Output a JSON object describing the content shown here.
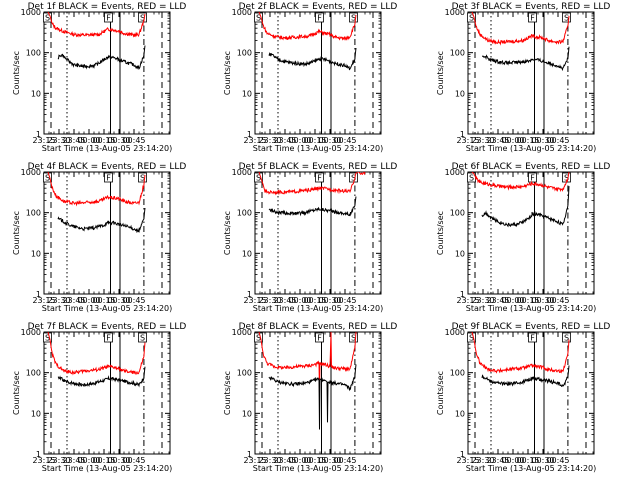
{
  "chart_data": [
    {
      "type": "line",
      "title": "Det 1f BLACK = Events, RED = LLD",
      "xlabel": "Start Time (13-Aug-05 23:14:20)",
      "ylabel": "Counts/sec",
      "x_ticks": [
        "23:15",
        "23:30",
        "23:45",
        "00:00",
        "00:15",
        "00:30",
        "00:45"
      ],
      "y_ticks": [
        "1",
        "10",
        "100",
        "1000"
      ],
      "ylim": [
        1,
        1000
      ],
      "yscale": "log",
      "markers": [
        {
          "label": "S"
        },
        {
          "label": "F"
        },
        {
          "label": "S"
        }
      ],
      "series": [
        {
          "name": "RED",
          "color": "#ff0000",
          "x": [
            4,
            6,
            8,
            12,
            20,
            30,
            40,
            55,
            64,
            70,
            75,
            80,
            90,
            95,
            99.9,
            101
          ],
          "y": [
            1000,
            800,
            520,
            400,
            330,
            280,
            270,
            280,
            380,
            360,
            340,
            300,
            270,
            280,
            600,
            900
          ]
        },
        {
          "name": "BLACK",
          "color": "#000000",
          "x": [
            14,
            18,
            22,
            30,
            40,
            50,
            55,
            60,
            64,
            64,
            70,
            80,
            90,
            95,
            99.9,
            101
          ],
          "y": [
            75,
            90,
            70,
            50,
            46,
            48,
            55,
            68,
            78,
            80,
            75,
            60,
            50,
            42,
            85,
            150
          ]
        }
      ]
    },
    {
      "type": "line",
      "title": "Det 2f BLACK = Events, RED = LLD",
      "xlabel": "Start Time (13-Aug-05 23:14:20)",
      "ylabel": "Counts/sec",
      "x_ticks": [
        "23:15",
        "23:30",
        "23:45",
        "00:00",
        "00:15",
        "00:30",
        "00:45"
      ],
      "y_ticks": [
        "1",
        "10",
        "100",
        "1000"
      ],
      "ylim": [
        1,
        1000
      ],
      "yscale": "log",
      "markers": [
        {
          "label": "S"
        },
        {
          "label": "F"
        },
        {
          "label": "S"
        }
      ],
      "series": [
        {
          "name": "RED",
          "color": "#ff0000",
          "x": [
            4,
            6,
            8,
            12,
            20,
            30,
            40,
            55,
            64,
            70,
            75,
            80,
            90,
            95,
            99.9,
            101
          ],
          "y": [
            1000,
            750,
            480,
            300,
            250,
            230,
            240,
            260,
            330,
            300,
            280,
            240,
            220,
            250,
            500,
            850
          ]
        },
        {
          "name": "BLACK",
          "color": "#000000",
          "x": [
            14,
            18,
            22,
            30,
            40,
            50,
            55,
            60,
            64,
            64,
            70,
            80,
            90,
            95,
            99.9,
            101
          ],
          "y": [
            90,
            85,
            70,
            60,
            55,
            52,
            56,
            62,
            70,
            72,
            68,
            55,
            48,
            40,
            70,
            130
          ]
        }
      ]
    },
    {
      "type": "line",
      "title": "Det 3f BLACK = Events, RED = LLD",
      "xlabel": "Start Time (13-Aug-05 23:14:20)",
      "ylabel": "Counts/sec",
      "x_ticks": [
        "23:15",
        "23:30",
        "23:45",
        "00:00",
        "00:15",
        "00:30",
        "00:45"
      ],
      "y_ticks": [
        "1",
        "10",
        "100",
        "1000"
      ],
      "ylim": [
        1,
        1000
      ],
      "yscale": "log",
      "markers": [
        {
          "label": "S"
        },
        {
          "label": "F"
        },
        {
          "label": "S"
        }
      ],
      "series": [
        {
          "name": "RED",
          "color": "#ff0000",
          "x": [
            4,
            6,
            8,
            12,
            20,
            30,
            40,
            55,
            64,
            70,
            75,
            80,
            90,
            95,
            99.9,
            101
          ],
          "y": [
            1000,
            750,
            450,
            280,
            200,
            180,
            185,
            200,
            260,
            240,
            230,
            200,
            180,
            190,
            450,
            800
          ]
        },
        {
          "name": "BLACK",
          "color": "#000000",
          "x": [
            14,
            18,
            22,
            30,
            40,
            50,
            55,
            60,
            64,
            64,
            70,
            80,
            90,
            95,
            99.9,
            101
          ],
          "y": [
            85,
            80,
            68,
            60,
            56,
            58,
            60,
            62,
            68,
            70,
            66,
            56,
            48,
            40,
            72,
            140
          ]
        }
      ]
    },
    {
      "type": "line",
      "title": "Det 4f BLACK = Events, RED = LLD",
      "xlabel": "Start Time (13-Aug-05 23:14:20)",
      "ylabel": "Counts/sec",
      "x_ticks": [
        "23:15",
        "23:30",
        "23:45",
        "00:00",
        "00:15",
        "00:30",
        "00:45"
      ],
      "y_ticks": [
        "1",
        "10",
        "100",
        "1000"
      ],
      "ylim": [
        1,
        1000
      ],
      "yscale": "log",
      "markers": [
        {
          "label": "S"
        },
        {
          "label": "F"
        },
        {
          "label": "S"
        }
      ],
      "series": [
        {
          "name": "RED",
          "color": "#ff0000",
          "x": [
            4,
            6,
            8,
            12,
            20,
            30,
            40,
            55,
            64,
            70,
            75,
            80,
            90,
            95,
            99.9,
            101
          ],
          "y": [
            1000,
            700,
            420,
            260,
            190,
            170,
            175,
            190,
            240,
            230,
            220,
            190,
            170,
            180,
            480,
            850
          ]
        },
        {
          "name": "BLACK",
          "color": "#000000",
          "x": [
            14,
            18,
            22,
            30,
            40,
            50,
            55,
            60,
            64,
            64,
            70,
            80,
            90,
            95,
            99.9,
            101
          ],
          "y": [
            70,
            65,
            55,
            45,
            40,
            42,
            46,
            50,
            56,
            58,
            56,
            48,
            40,
            35,
            70,
            130
          ]
        }
      ]
    },
    {
      "type": "line",
      "title": "Det 5f BLACK = Events, RED = LLD",
      "xlabel": "Start Time (13-Aug-05 23:14:20)",
      "ylabel": "Counts/sec",
      "x_ticks": [
        "23:15",
        "23:30",
        "23:45",
        "00:00",
        "00:15",
        "00:30",
        "00:45"
      ],
      "y_ticks": [
        "1",
        "10",
        "100",
        "1000"
      ],
      "ylim": [
        1,
        1000
      ],
      "yscale": "log",
      "markers": [
        {
          "label": "S"
        },
        {
          "label": "F"
        },
        {
          "label": "S"
        }
      ],
      "series": [
        {
          "name": "RED",
          "color": "#ff0000",
          "x": [
            4,
            6,
            8,
            10,
            14,
            20,
            30,
            40,
            55,
            64,
            70,
            80,
            90,
            95,
            99.9,
            101,
            104,
            106,
            110
          ],
          "y": [
            1000,
            700,
            500,
            330,
            320,
            320,
            320,
            330,
            360,
            400,
            390,
            360,
            340,
            330,
            700,
            1000,
            1000,
            850,
            1000
          ]
        },
        {
          "name": "BLACK",
          "color": "#000000",
          "x": [
            14,
            18,
            22,
            30,
            40,
            50,
            55,
            60,
            64,
            64,
            70,
            80,
            90,
            95,
            99.9,
            101
          ],
          "y": [
            120,
            110,
            100,
            98,
            95,
            100,
            110,
            118,
            125,
            125,
            118,
            105,
            95,
            90,
            150,
            250
          ]
        }
      ]
    },
    {
      "type": "line",
      "title": "Det 6f BLACK = Events, RED = LLD",
      "xlabel": "Start Time (13-Aug-05 23:14:20)",
      "ylabel": "Counts/sec",
      "x_ticks": [
        "23:15",
        "23:30",
        "23:45",
        "00:00",
        "00:15",
        "00:30",
        "00:45"
      ],
      "y_ticks": [
        "1",
        "10",
        "100",
        "1000"
      ],
      "ylim": [
        1,
        1000
      ],
      "yscale": "log",
      "markers": [
        {
          "label": "S"
        },
        {
          "label": "F"
        },
        {
          "label": "S"
        }
      ],
      "series": [
        {
          "name": "RED",
          "color": "#ff0000",
          "x": [
            4,
            6,
            8,
            12,
            20,
            30,
            40,
            55,
            64,
            70,
            75,
            80,
            90,
            95,
            99.9,
            101
          ],
          "y": [
            1000,
            900,
            700,
            560,
            500,
            450,
            420,
            440,
            520,
            500,
            470,
            420,
            380,
            380,
            700,
            1000
          ]
        },
        {
          "name": "BLACK",
          "color": "#000000",
          "x": [
            14,
            18,
            22,
            30,
            40,
            50,
            55,
            60,
            64,
            64,
            70,
            80,
            90,
            95,
            99.9,
            101
          ],
          "y": [
            85,
            100,
            80,
            60,
            50,
            52,
            60,
            70,
            85,
            95,
            90,
            75,
            60,
            50,
            150,
            450
          ]
        }
      ]
    },
    {
      "type": "line",
      "title": "Det 7f BLACK = Events, RED = LLD",
      "xlabel": "Start Time (13-Aug-05 23:14:20)",
      "ylabel": "Counts/sec",
      "x_ticks": [
        "23:15",
        "23:30",
        "23:45",
        "00:00",
        "00:15",
        "00:30",
        "00:45"
      ],
      "y_ticks": [
        "1",
        "10",
        "100",
        "1000"
      ],
      "ylim": [
        1,
        1000
      ],
      "yscale": "log",
      "markers": [
        {
          "label": "S"
        },
        {
          "label": "F"
        },
        {
          "label": "S"
        }
      ],
      "series": [
        {
          "name": "RED",
          "color": "#ff0000",
          "x": [
            4,
            6,
            8,
            12,
            20,
            30,
            40,
            55,
            64,
            70,
            75,
            80,
            90,
            95,
            99.9,
            101
          ],
          "y": [
            1000,
            650,
            300,
            160,
            110,
            100,
            110,
            120,
            140,
            135,
            125,
            110,
            100,
            100,
            250,
            550
          ]
        },
        {
          "name": "BLACK",
          "color": "#000000",
          "x": [
            14,
            18,
            22,
            30,
            40,
            50,
            55,
            60,
            64,
            64,
            70,
            80,
            90,
            95,
            99.9,
            101
          ],
          "y": [
            75,
            70,
            60,
            55,
            50,
            55,
            60,
            65,
            70,
            72,
            70,
            62,
            55,
            50,
            75,
            140
          ]
        }
      ]
    },
    {
      "type": "line",
      "title": "Det 8f BLACK = Events, RED = LLD",
      "xlabel": "Start Time (13-Aug-05 23:14:20)",
      "ylabel": "Counts/sec",
      "x_ticks": [
        "23:15",
        "23:30",
        "23:45",
        "00:00",
        "00:15",
        "00:30",
        "00:45"
      ],
      "y_ticks": [
        "1",
        "10",
        "100",
        "1000"
      ],
      "ylim": [
        1,
        1000
      ],
      "yscale": "log",
      "markers": [
        {
          "label": "S"
        },
        {
          "label": "F"
        },
        {
          "label": "S"
        }
      ],
      "series": [
        {
          "name": "RED",
          "color": "#ff0000",
          "x": [
            4,
            6,
            8,
            12,
            20,
            30,
            40,
            55,
            64,
            64.5,
            65,
            70,
            75,
            76,
            76.5,
            80,
            90,
            95,
            99.9,
            101
          ],
          "y": [
            1000,
            650,
            300,
            170,
            140,
            130,
            140,
            150,
            170,
            30,
            170,
            160,
            140,
            1000,
            140,
            130,
            125,
            120,
            400,
            1000
          ]
        },
        {
          "name": "BLACK",
          "color": "#000000",
          "x": [
            14,
            18,
            22,
            30,
            40,
            50,
            55,
            60,
            64,
            64.5,
            65,
            70,
            72,
            72.5,
            73,
            80,
            90,
            95,
            99.9,
            101
          ],
          "y": [
            75,
            70,
            60,
            55,
            52,
            55,
            60,
            65,
            70,
            4,
            70,
            65,
            60,
            6,
            60,
            55,
            50,
            40,
            80,
            160
          ]
        }
      ]
    },
    {
      "type": "line",
      "title": "Det 9f BLACK = Events, RED = LLD",
      "xlabel": "Start Time (13-Aug-05 23:14:20)",
      "ylabel": "Counts/sec",
      "x_ticks": [
        "23:15",
        "23:30",
        "23:45",
        "00:00",
        "00:15",
        "00:30",
        "00:45"
      ],
      "y_ticks": [
        "1",
        "10",
        "100",
        "1000"
      ],
      "ylim": [
        1,
        1000
      ],
      "yscale": "log",
      "markers": [
        {
          "label": "S"
        },
        {
          "label": "F"
        },
        {
          "label": "S"
        }
      ],
      "series": [
        {
          "name": "RED",
          "color": "#ff0000",
          "x": [
            4,
            6,
            8,
            12,
            20,
            30,
            40,
            55,
            64,
            70,
            75,
            80,
            90,
            95,
            99.9,
            101
          ],
          "y": [
            1000,
            650,
            320,
            170,
            120,
            110,
            120,
            130,
            150,
            140,
            135,
            120,
            110,
            110,
            300,
            650
          ]
        },
        {
          "name": "BLACK",
          "color": "#000000",
          "x": [
            14,
            18,
            22,
            30,
            40,
            50,
            55,
            60,
            64,
            64,
            70,
            80,
            90,
            95,
            99.9,
            101
          ],
          "y": [
            80,
            75,
            62,
            56,
            52,
            56,
            60,
            66,
            72,
            74,
            70,
            62,
            55,
            45,
            80,
            150
          ]
        }
      ]
    }
  ]
}
